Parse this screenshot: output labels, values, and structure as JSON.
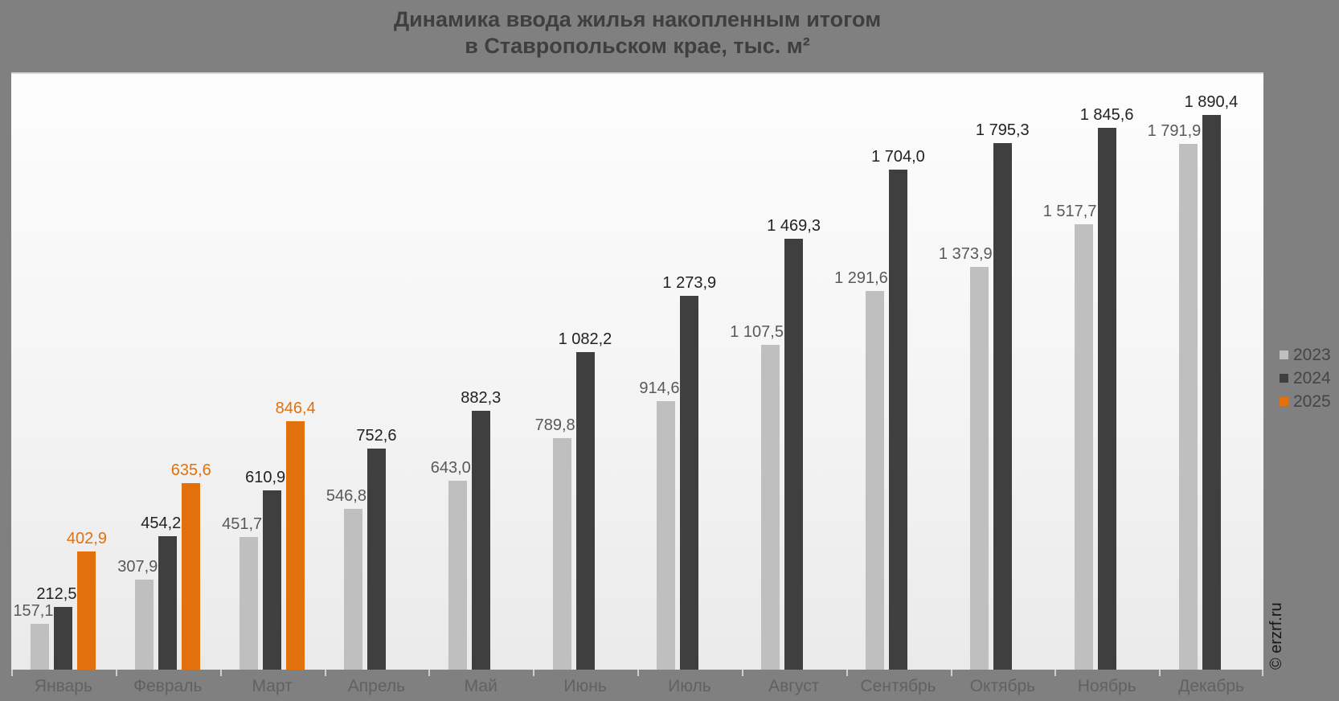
{
  "title": {
    "line1": "Динамика ввода жилья накопленным итогом",
    "line2": "в Ставропольском крае, тыс. м²"
  },
  "watermark": "© erzrf.ru",
  "chart_data": {
    "type": "bar",
    "title": "Динамика ввода жилья накопленным итогом в Ставропольском крае, тыс. м²",
    "categories": [
      "Январь",
      "Февраль",
      "Март",
      "Апрель",
      "Май",
      "Июнь",
      "Июль",
      "Август",
      "Сентябрь",
      "Октябрь",
      "Ноябрь",
      "Декабрь"
    ],
    "series": [
      {
        "name": "2023",
        "color": "#bfbfbf",
        "label_color": "#595959",
        "values": [
          157.1,
          307.9,
          451.7,
          546.8,
          643.0,
          789.8,
          914.6,
          1107.5,
          1291.6,
          1373.9,
          1517.7,
          1791.9
        ],
        "labels": [
          "157,1",
          "307,9",
          "451,7",
          "546,8",
          "643,0",
          "789,8",
          "914,6",
          "1 107,5",
          "1 291,6",
          "1 373,9",
          "1 517,7",
          "1 791,9"
        ]
      },
      {
        "name": "2024",
        "color": "#3f3f3f",
        "label_color": "#222222",
        "values": [
          212.5,
          454.2,
          610.9,
          752.6,
          882.3,
          1082.2,
          1273.9,
          1469.3,
          1704.0,
          1795.3,
          1845.6,
          1890.4
        ],
        "labels": [
          "212,5",
          "454,2",
          "610,9",
          "752,6",
          "882,3",
          "1 082,2",
          "1 273,9",
          "1 469,3",
          "1 704,0",
          "1 795,3",
          "1 845,6",
          "1 890,4"
        ]
      },
      {
        "name": "2025",
        "color": "#e2700c",
        "label_color": "#e2700c",
        "values": [
          402.9,
          635.6,
          846.4,
          null,
          null,
          null,
          null,
          null,
          null,
          null,
          null,
          null
        ],
        "labels": [
          "402,9",
          "635,6",
          "846,4",
          null,
          null,
          null,
          null,
          null,
          null,
          null,
          null,
          null
        ]
      }
    ],
    "ylim": [
      0,
      2030
    ],
    "grid": false,
    "legend_position": "right",
    "value_labels": "outside-end"
  }
}
